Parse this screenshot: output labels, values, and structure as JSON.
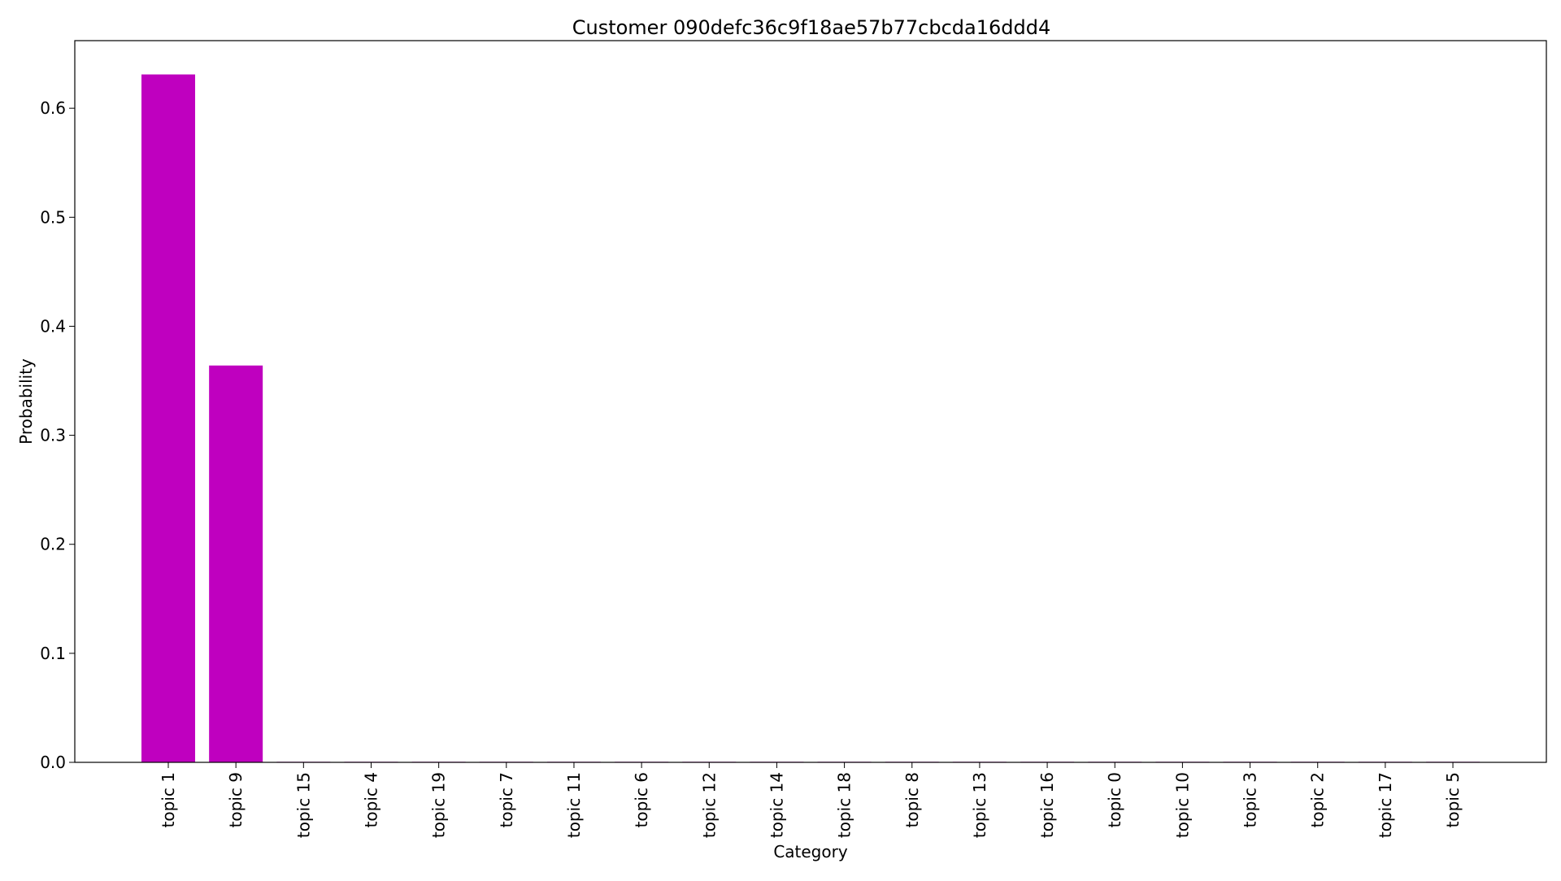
{
  "chart_data": {
    "type": "bar",
    "title": "Customer 090defc36c9f18ae57b77cbcda16ddd4",
    "xlabel": "Category",
    "ylabel": "Probability",
    "categories": [
      "topic 1",
      "topic 9",
      "topic 15",
      "topic 4",
      "topic 19",
      "topic 7",
      "topic 11",
      "topic 6",
      "topic 12",
      "topic 14",
      "topic 18",
      "topic 8",
      "topic 13",
      "topic 16",
      "topic 0",
      "topic 10",
      "topic 3",
      "topic 2",
      "topic 17",
      "topic 5"
    ],
    "values": [
      0.631,
      0.364,
      0.0005,
      0.0005,
      0.0005,
      0.0005,
      0.0005,
      0.0005,
      0.0005,
      0.0005,
      0.0005,
      0.0005,
      0.0005,
      0.0005,
      0.0005,
      0.0005,
      0.0005,
      0.0005,
      0.0005,
      0.0005
    ],
    "ylim": [
      0,
      0.662
    ],
    "yticks": [
      0.0,
      0.1,
      0.2,
      0.3,
      0.4,
      0.5,
      0.6
    ],
    "ytick_labels": [
      "0.0",
      "0.1",
      "0.2",
      "0.3",
      "0.4",
      "0.5",
      "0.6"
    ],
    "bar_color": "#bf00bf",
    "grid": false,
    "legend": "none"
  }
}
